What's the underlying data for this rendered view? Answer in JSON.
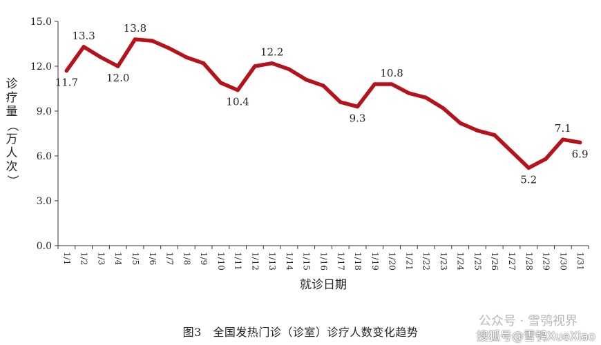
{
  "chart_data": {
    "type": "line",
    "x": [
      "1/1",
      "1/2",
      "1/3",
      "1/4",
      "1/5",
      "1/6",
      "1/7",
      "1/8",
      "1/9",
      "1/10",
      "1/11",
      "1/12",
      "1/13",
      "1/14",
      "1/15",
      "1/16",
      "1/17",
      "1/18",
      "1/19",
      "1/20",
      "1/21",
      "1/22",
      "1/23",
      "1/24",
      "1/25",
      "1/26",
      "1/27",
      "1/28",
      "1/29",
      "1/30",
      "1/31"
    ],
    "values": [
      11.7,
      13.3,
      12.6,
      12.0,
      13.8,
      13.7,
      13.2,
      12.6,
      12.2,
      10.9,
      10.4,
      12.0,
      12.2,
      11.8,
      11.1,
      10.7,
      9.6,
      9.3,
      10.8,
      10.8,
      10.2,
      9.9,
      9.2,
      8.2,
      7.7,
      7.4,
      6.3,
      5.2,
      5.8,
      7.1,
      6.9
    ],
    "data_labels": [
      {
        "index": 0,
        "text": "11.7",
        "pos": "below"
      },
      {
        "index": 1,
        "text": "13.3",
        "pos": "above"
      },
      {
        "index": 3,
        "text": "12.0",
        "pos": "below"
      },
      {
        "index": 4,
        "text": "13.8",
        "pos": "above"
      },
      {
        "index": 10,
        "text": "10.4",
        "pos": "below"
      },
      {
        "index": 12,
        "text": "12.2",
        "pos": "above"
      },
      {
        "index": 17,
        "text": "9.3",
        "pos": "below"
      },
      {
        "index": 19,
        "text": "10.8",
        "pos": "above"
      },
      {
        "index": 27,
        "text": "5.2",
        "pos": "below"
      },
      {
        "index": 29,
        "text": "7.1",
        "pos": "above"
      },
      {
        "index": 30,
        "text": "6.9",
        "pos": "below"
      }
    ],
    "yticks": [
      "0.0",
      "3.0",
      "6.0",
      "9.0",
      "12.0",
      "15.0"
    ],
    "ylim": [
      0,
      15
    ],
    "xlabel": "就诊日期",
    "ylabel": "诊疗量（万人次）",
    "line_color": "#b5121b",
    "grid": false
  },
  "caption": "图3　全国发热门诊（诊室）诊疗人数变化趋势",
  "watermark_1": "公众号 · 雪鸮视界",
  "watermark_2": "搜狐号@雪鸮XueXiao"
}
